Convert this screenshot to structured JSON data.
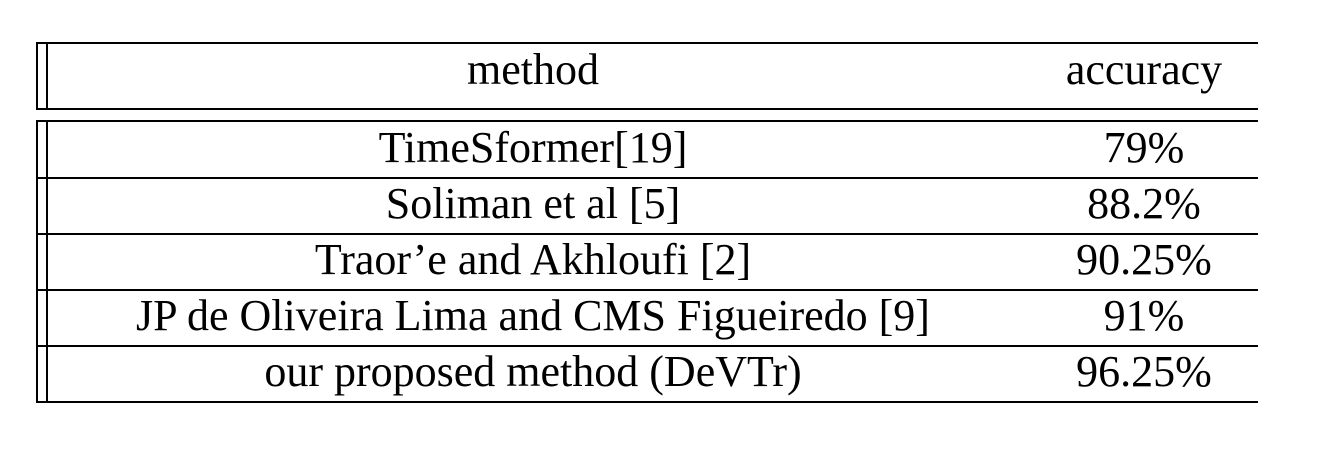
{
  "table": {
    "headers": {
      "method": "method",
      "accuracy": "accuracy"
    },
    "rows": [
      {
        "method": "TimeSformer[19]",
        "accuracy": "79%"
      },
      {
        "method": "Soliman et al [5]",
        "accuracy": "88.2%"
      },
      {
        "method": "Traor’e and Akhloufi [2]",
        "accuracy": "90.25%"
      },
      {
        "method": "JP de Oliveira Lima and CMS Figueiredo [9]",
        "accuracy": "91%"
      },
      {
        "method": "our proposed method (DeVTr)",
        "accuracy": "96.25%"
      }
    ]
  }
}
